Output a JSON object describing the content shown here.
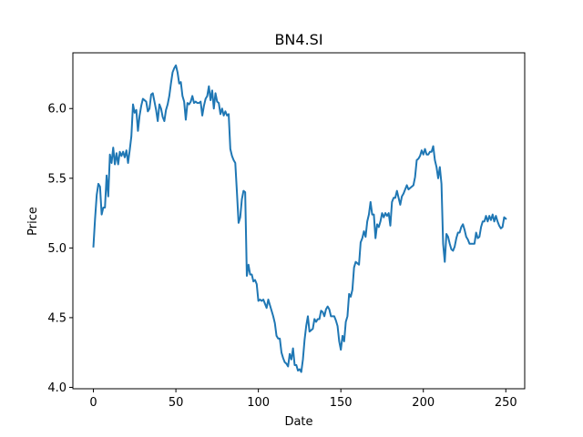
{
  "chart_data": {
    "type": "line",
    "title": "BN4.SI",
    "xlabel": "Date",
    "ylabel": "Price",
    "xlim": [
      -12.45,
      261.45
    ],
    "ylim": [
      3.99,
      6.4
    ],
    "x_ticks": [
      0,
      50,
      100,
      150,
      200,
      250
    ],
    "y_ticks": [
      4.0,
      4.5,
      5.0,
      5.5,
      6.0
    ],
    "x_tick_labels": [
      "0",
      "50",
      "100",
      "150",
      "200",
      "250"
    ],
    "y_tick_labels": [
      "4.0",
      "4.5",
      "5.0",
      "5.5",
      "6.0"
    ],
    "grid": false,
    "line_color": "#1f77b4",
    "series": [
      {
        "points": [
          [
            0,
            5.01
          ],
          [
            1,
            5.21
          ],
          [
            2,
            5.38
          ],
          [
            3,
            5.46
          ],
          [
            4,
            5.44
          ],
          [
            5,
            5.24
          ],
          [
            6,
            5.29
          ],
          [
            7,
            5.29
          ],
          [
            8,
            5.52
          ],
          [
            9,
            5.37
          ],
          [
            10,
            5.67
          ],
          [
            11,
            5.61
          ],
          [
            12,
            5.72
          ],
          [
            13,
            5.6
          ],
          [
            14,
            5.68
          ],
          [
            15,
            5.6
          ],
          [
            16,
            5.69
          ],
          [
            17,
            5.66
          ],
          [
            18,
            5.69
          ],
          [
            19,
            5.65
          ],
          [
            20,
            5.7
          ],
          [
            21,
            5.61
          ],
          [
            22,
            5.7
          ],
          [
            23,
            5.8
          ],
          [
            24,
            6.03
          ],
          [
            25,
            5.97
          ],
          [
            26,
            5.99
          ],
          [
            27,
            5.84
          ],
          [
            28,
            5.95
          ],
          [
            29,
            6.02
          ],
          [
            30,
            6.07
          ],
          [
            31,
            6.06
          ],
          [
            32,
            6.05
          ],
          [
            33,
            5.98
          ],
          [
            34,
            6.0
          ],
          [
            35,
            6.1
          ],
          [
            36,
            6.11
          ],
          [
            37,
            6.05
          ],
          [
            38,
            5.99
          ],
          [
            39,
            5.91
          ],
          [
            40,
            6.03
          ],
          [
            41,
            6.0
          ],
          [
            42,
            5.94
          ],
          [
            43,
            5.91
          ],
          [
            44,
            5.99
          ],
          [
            45,
            6.03
          ],
          [
            46,
            6.09
          ],
          [
            47,
            6.18
          ],
          [
            48,
            6.26
          ],
          [
            49,
            6.29
          ],
          [
            50,
            6.31
          ],
          [
            51,
            6.26
          ],
          [
            52,
            6.18
          ],
          [
            53,
            6.19
          ],
          [
            54,
            6.09
          ],
          [
            55,
            6.05
          ],
          [
            56,
            5.92
          ],
          [
            57,
            6.04
          ],
          [
            58,
            6.03
          ],
          [
            59,
            6.05
          ],
          [
            60,
            6.09
          ],
          [
            61,
            6.04
          ],
          [
            62,
            6.05
          ],
          [
            63,
            6.04
          ],
          [
            64,
            6.04
          ],
          [
            65,
            6.05
          ],
          [
            66,
            5.95
          ],
          [
            67,
            6.02
          ],
          [
            68,
            6.07
          ],
          [
            69,
            6.09
          ],
          [
            70,
            6.16
          ],
          [
            71,
            6.06
          ],
          [
            72,
            6.13
          ],
          [
            73,
            6.0
          ],
          [
            74,
            6.11
          ],
          [
            75,
            6.05
          ],
          [
            76,
            6.04
          ],
          [
            77,
            5.96
          ],
          [
            78,
            6.0
          ],
          [
            79,
            5.95
          ],
          [
            80,
            5.98
          ],
          [
            81,
            5.95
          ],
          [
            82,
            5.96
          ],
          [
            83,
            5.71
          ],
          [
            84,
            5.66
          ],
          [
            85,
            5.63
          ],
          [
            86,
            5.61
          ],
          [
            87,
            5.4
          ],
          [
            88,
            5.18
          ],
          [
            89,
            5.22
          ],
          [
            90,
            5.35
          ],
          [
            91,
            5.41
          ],
          [
            92,
            5.4
          ],
          [
            93,
            4.8
          ],
          [
            94,
            4.88
          ],
          [
            95,
            4.81
          ],
          [
            96,
            4.81
          ],
          [
            97,
            4.76
          ],
          [
            98,
            4.77
          ],
          [
            99,
            4.74
          ],
          [
            100,
            4.62
          ],
          [
            101,
            4.63
          ],
          [
            102,
            4.62
          ],
          [
            103,
            4.63
          ],
          [
            104,
            4.6
          ],
          [
            105,
            4.57
          ],
          [
            106,
            4.63
          ],
          [
            107,
            4.59
          ],
          [
            108,
            4.55
          ],
          [
            109,
            4.51
          ],
          [
            110,
            4.46
          ],
          [
            111,
            4.37
          ],
          [
            112,
            4.35
          ],
          [
            113,
            4.35
          ],
          [
            114,
            4.25
          ],
          [
            115,
            4.21
          ],
          [
            116,
            4.18
          ],
          [
            117,
            4.17
          ],
          [
            118,
            4.15
          ],
          [
            119,
            4.24
          ],
          [
            120,
            4.2
          ],
          [
            121,
            4.28
          ],
          [
            122,
            4.16
          ],
          [
            123,
            4.16
          ],
          [
            124,
            4.12
          ],
          [
            125,
            4.13
          ],
          [
            126,
            4.11
          ],
          [
            127,
            4.2
          ],
          [
            128,
            4.34
          ],
          [
            129,
            4.44
          ],
          [
            130,
            4.51
          ],
          [
            131,
            4.4
          ],
          [
            132,
            4.41
          ],
          [
            133,
            4.42
          ],
          [
            134,
            4.49
          ],
          [
            135,
            4.47
          ],
          [
            136,
            4.49
          ],
          [
            137,
            4.49
          ],
          [
            138,
            4.55
          ],
          [
            139,
            4.54
          ],
          [
            140,
            4.51
          ],
          [
            141,
            4.56
          ],
          [
            142,
            4.58
          ],
          [
            143,
            4.56
          ],
          [
            144,
            4.51
          ],
          [
            145,
            4.51
          ],
          [
            146,
            4.51
          ],
          [
            147,
            4.48
          ],
          [
            148,
            4.44
          ],
          [
            149,
            4.33
          ],
          [
            150,
            4.27
          ],
          [
            151,
            4.37
          ],
          [
            152,
            4.33
          ],
          [
            153,
            4.47
          ],
          [
            154,
            4.51
          ],
          [
            155,
            4.67
          ],
          [
            156,
            4.65
          ],
          [
            157,
            4.7
          ],
          [
            158,
            4.86
          ],
          [
            159,
            4.9
          ],
          [
            160,
            4.89
          ],
          [
            161,
            4.88
          ],
          [
            162,
            5.04
          ],
          [
            163,
            5.07
          ],
          [
            164,
            5.12
          ],
          [
            165,
            5.08
          ],
          [
            166,
            5.19
          ],
          [
            167,
            5.24
          ],
          [
            168,
            5.33
          ],
          [
            169,
            5.24
          ],
          [
            170,
            5.24
          ],
          [
            171,
            5.07
          ],
          [
            172,
            5.17
          ],
          [
            173,
            5.15
          ],
          [
            174,
            5.19
          ],
          [
            175,
            5.25
          ],
          [
            176,
            5.22
          ],
          [
            177,
            5.25
          ],
          [
            178,
            5.23
          ],
          [
            179,
            5.25
          ],
          [
            180,
            5.16
          ],
          [
            181,
            5.33
          ],
          [
            182,
            5.36
          ],
          [
            183,
            5.36
          ],
          [
            184,
            5.41
          ],
          [
            185,
            5.36
          ],
          [
            186,
            5.31
          ],
          [
            187,
            5.37
          ],
          [
            188,
            5.39
          ],
          [
            189,
            5.42
          ],
          [
            190,
            5.45
          ],
          [
            191,
            5.42
          ],
          [
            192,
            5.43
          ],
          [
            193,
            5.44
          ],
          [
            194,
            5.45
          ],
          [
            195,
            5.51
          ],
          [
            196,
            5.63
          ],
          [
            197,
            5.64
          ],
          [
            198,
            5.66
          ],
          [
            199,
            5.7
          ],
          [
            200,
            5.67
          ],
          [
            201,
            5.71
          ],
          [
            202,
            5.67
          ],
          [
            203,
            5.67
          ],
          [
            204,
            5.69
          ],
          [
            205,
            5.69
          ],
          [
            206,
            5.73
          ],
          [
            207,
            5.63
          ],
          [
            208,
            5.58
          ],
          [
            209,
            5.5
          ],
          [
            210,
            5.58
          ],
          [
            211,
            5.46
          ],
          [
            212,
            5.03
          ],
          [
            213,
            4.9
          ],
          [
            214,
            5.1
          ],
          [
            215,
            5.08
          ],
          [
            216,
            5.03
          ],
          [
            217,
            4.99
          ],
          [
            218,
            4.98
          ],
          [
            219,
            5.01
          ],
          [
            220,
            5.07
          ],
          [
            221,
            5.11
          ],
          [
            222,
            5.11
          ],
          [
            223,
            5.15
          ],
          [
            224,
            5.17
          ],
          [
            225,
            5.13
          ],
          [
            226,
            5.08
          ],
          [
            227,
            5.06
          ],
          [
            228,
            5.03
          ],
          [
            229,
            5.03
          ],
          [
            230,
            5.03
          ],
          [
            231,
            5.03
          ],
          [
            232,
            5.11
          ],
          [
            233,
            5.07
          ],
          [
            234,
            5.08
          ],
          [
            235,
            5.15
          ],
          [
            236,
            5.19
          ],
          [
            237,
            5.19
          ],
          [
            238,
            5.23
          ],
          [
            239,
            5.19
          ],
          [
            240,
            5.23
          ],
          [
            241,
            5.2
          ],
          [
            242,
            5.24
          ],
          [
            243,
            5.19
          ],
          [
            244,
            5.23
          ],
          [
            245,
            5.19
          ],
          [
            246,
            5.16
          ],
          [
            247,
            5.14
          ],
          [
            248,
            5.15
          ],
          [
            249,
            5.22
          ],
          [
            250,
            5.21
          ]
        ]
      }
    ]
  }
}
